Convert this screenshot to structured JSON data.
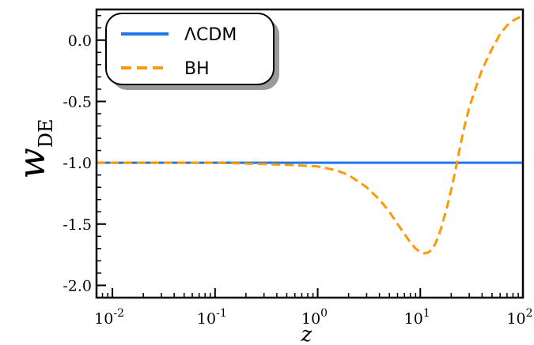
{
  "chart_data": {
    "type": "line",
    "title": "",
    "xlabel": "z",
    "ylabel_main": "w",
    "ylabel_sub": "DE",
    "xscale": "log",
    "xlim": [
      0.007,
      100
    ],
    "ylim": [
      -2.1,
      0.25
    ],
    "x_ticks": [
      {
        "value": 0.01,
        "base": "10",
        "exp": "-2"
      },
      {
        "value": 0.1,
        "base": "10",
        "exp": "-1"
      },
      {
        "value": 1,
        "base": "10",
        "exp": "0"
      },
      {
        "value": 10,
        "base": "10",
        "exp": "1"
      },
      {
        "value": 100,
        "base": "10",
        "exp": "2"
      }
    ],
    "y_ticks": [
      {
        "value": 0.0,
        "label": "0.0"
      },
      {
        "value": -0.5,
        "label": "-0.5"
      },
      {
        "value": -1.0,
        "label": "-1.0"
      },
      {
        "value": -1.5,
        "label": "-1.5"
      },
      {
        "value": -2.0,
        "label": "-2.0"
      }
    ],
    "legend": {
      "placement": "top-left"
    },
    "series": [
      {
        "name": "ΛCDM",
        "color": "#1f77e8",
        "style": "solid",
        "x": [
          0.007,
          100
        ],
        "y": [
          -1.0,
          -1.0
        ]
      },
      {
        "name": "BH",
        "color": "#ff9900",
        "style": "dashed",
        "x": [
          0.007,
          0.01,
          0.03,
          0.1,
          0.3,
          0.6,
          1,
          1.5,
          2,
          3,
          4,
          5,
          6,
          7,
          8,
          9,
          10,
          11,
          12,
          13,
          14,
          15,
          16,
          17,
          18,
          19,
          20,
          21,
          22,
          23,
          24,
          25,
          27,
          30,
          35,
          40,
          50,
          60,
          70,
          80,
          100
        ],
        "y": [
          -1.0,
          -1.0,
          -1.0,
          -1.0,
          -1.01,
          -1.02,
          -1.03,
          -1.06,
          -1.1,
          -1.2,
          -1.3,
          -1.4,
          -1.5,
          -1.58,
          -1.65,
          -1.7,
          -1.73,
          -1.74,
          -1.73,
          -1.71,
          -1.66,
          -1.6,
          -1.53,
          -1.45,
          -1.38,
          -1.3,
          -1.22,
          -1.14,
          -1.06,
          -0.98,
          -0.9,
          -0.83,
          -0.7,
          -0.55,
          -0.38,
          -0.24,
          -0.07,
          0.05,
          0.12,
          0.16,
          0.2
        ]
      }
    ]
  }
}
